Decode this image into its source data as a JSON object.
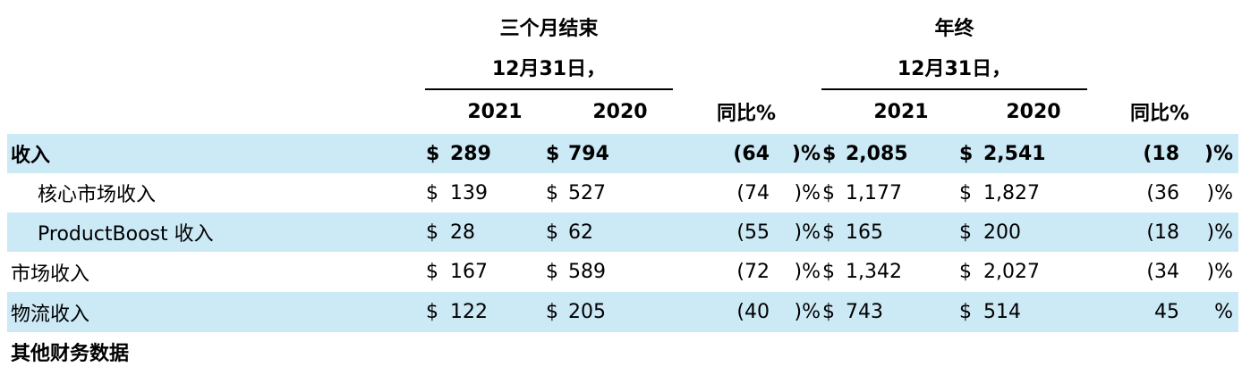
{
  "header": {
    "three_months": {
      "title": "三个月结束",
      "date": "12月31日，"
    },
    "year_ended": {
      "title": "年终",
      "date": "12月31日，"
    },
    "columns": {
      "q_2021": "2021",
      "q_2020": "2020",
      "q_yoy": "同比%",
      "y_2021": "2021",
      "y_2020": "2020",
      "y_yoy": "同比%"
    }
  },
  "currency": "$",
  "rows": [
    {
      "label": "收入",
      "q_2021": "289",
      "q_2020": "794",
      "q_yoy": "(64",
      "q_yoy_suffix": ")%",
      "y_2021": "2,085",
      "y_2020": "2,541",
      "y_yoy": "(18",
      "y_yoy_suffix": ")%"
    },
    {
      "label": "核心市场收入",
      "q_2021": "139",
      "q_2020": "527",
      "q_yoy": "(74",
      "q_yoy_suffix": ")%",
      "y_2021": "1,177",
      "y_2020": "1,827",
      "y_yoy": "(36",
      "y_yoy_suffix": ")%"
    },
    {
      "label": "ProductBoost 收入",
      "q_2021": "28",
      "q_2020": "62",
      "q_yoy": "(55",
      "q_yoy_suffix": ")%",
      "y_2021": "165",
      "y_2020": "200",
      "y_yoy": "(18",
      "y_yoy_suffix": ")%"
    },
    {
      "label": "市场收入",
      "q_2021": "167",
      "q_2020": "589",
      "q_yoy": "(72",
      "q_yoy_suffix": ")%",
      "y_2021": "1,342",
      "y_2020": "2,027",
      "y_yoy": "(34",
      "y_yoy_suffix": ")%"
    },
    {
      "label": "物流收入",
      "q_2021": "122",
      "q_2020": "205",
      "q_yoy": "(40",
      "q_yoy_suffix": ")%",
      "y_2021": "743",
      "y_2020": "514",
      "y_yoy": "45",
      "y_yoy_suffix": "%"
    }
  ],
  "section_heading": "其他财务数据",
  "colors": {
    "row_shade": "#cce9f6",
    "text": "#000000"
  }
}
